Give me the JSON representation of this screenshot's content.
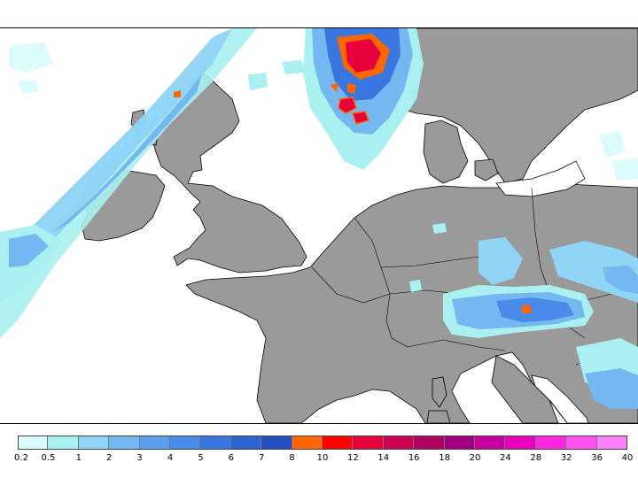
{
  "legend": {
    "ticks": [
      "0.2",
      "0.5",
      "1",
      "2",
      "3",
      "4",
      "5",
      "6",
      "7",
      "8",
      "10",
      "12",
      "14",
      "16",
      "18",
      "20",
      "24",
      "28",
      "32",
      "36",
      "40"
    ],
    "colors": [
      "#ddfbfb",
      "#aaf0f0",
      "#8fd3f5",
      "#74b8f2",
      "#5aa0ee",
      "#4a8ae8",
      "#3a76e0",
      "#2e63d4",
      "#2550c4",
      "#ff6600",
      "#ff0000",
      "#e8003c",
      "#cc0050",
      "#b00062",
      "#a00080",
      "#c800a0",
      "#e800c0",
      "#ff28e0",
      "#ff50f0",
      "#ff80ff"
    ]
  },
  "colors": {
    "land": "#9a9a9a",
    "sea": "#ffffff",
    "coast": "#000000"
  }
}
